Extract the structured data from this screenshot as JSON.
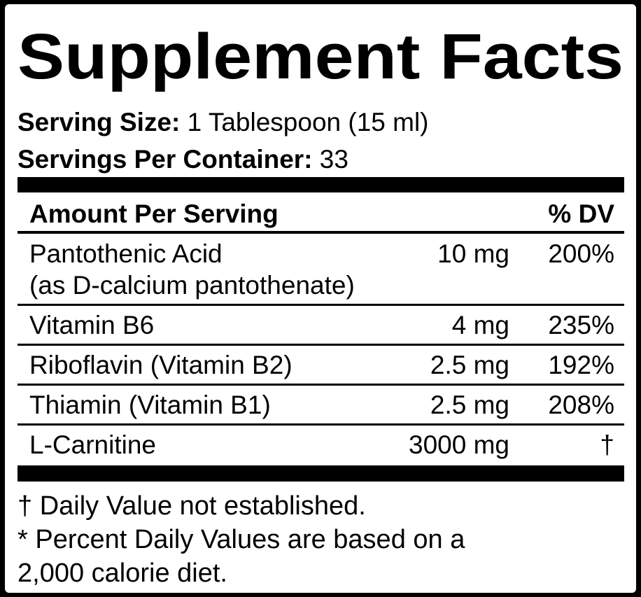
{
  "title": "Supplement Facts",
  "serving": {
    "size_label": "Serving Size:",
    "size": "1 Tablespoon (15 ml)",
    "per_container_label": "Servings Per Container:",
    "per_container": "33"
  },
  "table": {
    "header": [
      "Amount Per Serving",
      "% DV"
    ],
    "rows": [
      {
        "name": "Pantothenic Acid",
        "note": "(as D-calcium pantothenate)",
        "amount": "10 mg",
        "dv": "200%"
      },
      {
        "name": "Vitamin B6",
        "amount": "4 mg",
        "dv": "235%"
      },
      {
        "name": "Riboflavin (Vitamin B2)",
        "amount": "2.5 mg",
        "dv": "192%"
      },
      {
        "name": "Thiamin (Vitamin B1)",
        "amount": "2.5 mg",
        "dv": "208%"
      },
      {
        "name": "L-Carnitine",
        "amount": "3000 mg",
        "dv": "†"
      }
    ]
  },
  "footnotes": [
    "† Daily Value not established.",
    "* Percent Daily Values are based on a",
    "2,000 calorie diet."
  ]
}
